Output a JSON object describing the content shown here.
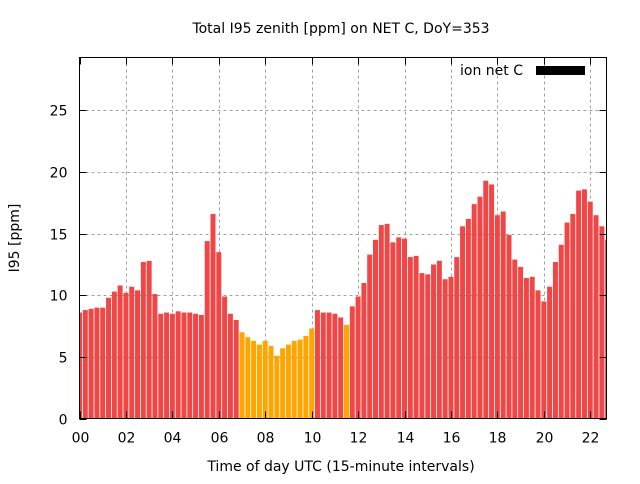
{
  "chart_data": {
    "type": "bar",
    "title": "Total I95 zenith [ppm] on NET C, DoY=353",
    "xlabel": "Time of day UTC (15-minute intervals)",
    "ylabel": "I95 [ppm]",
    "xlim": [
      0,
      22.7
    ],
    "ylim": [
      0,
      29.3
    ],
    "grid": true,
    "legend": {
      "placement": "top-right",
      "entries": [
        {
          "label": "ion net C",
          "color": "#000000"
        }
      ]
    },
    "x_ticks": [
      0,
      2,
      4,
      6,
      8,
      10,
      12,
      14,
      16,
      18,
      20,
      22
    ],
    "x_tick_labels": [
      "00",
      "02",
      "04",
      "06",
      "08",
      "10",
      "12",
      "14",
      "16",
      "18",
      "20",
      "22"
    ],
    "y_ticks": [
      0,
      5,
      10,
      15,
      20,
      25
    ],
    "y_tick_labels": [
      "0",
      "5",
      "10",
      "15",
      "20",
      "25"
    ],
    "interval_hours": 0.25,
    "colors": {
      "high": "#f04646",
      "low": "#ffa500"
    },
    "values": [
      8.6,
      8.8,
      8.9,
      9.0,
      9.0,
      9.8,
      10.3,
      10.8,
      10.2,
      10.7,
      10.4,
      12.7,
      12.8,
      10.1,
      8.5,
      8.6,
      8.5,
      8.7,
      8.6,
      8.6,
      8.5,
      8.4,
      14.4,
      16.6,
      13.5,
      9.9,
      8.5,
      8.0,
      7.0,
      6.6,
      6.3,
      6.0,
      6.3,
      5.9,
      5.1,
      5.7,
      6.0,
      6.3,
      6.4,
      6.7,
      7.3,
      8.8,
      8.6,
      8.6,
      8.5,
      8.2,
      7.6,
      9.1,
      9.9,
      11.0,
      13.3,
      14.5,
      15.7,
      15.8,
      14.3,
      14.7,
      14.6,
      13.1,
      13.2,
      11.8,
      11.7,
      12.5,
      12.8,
      11.3,
      11.5,
      13.1,
      15.6,
      16.2,
      17.4,
      18.0,
      19.3,
      19.0,
      16.5,
      16.8,
      14.9,
      12.9,
      12.3,
      11.4,
      11.5,
      10.4,
      9.5,
      10.7,
      12.7,
      14.1,
      15.9,
      16.6,
      18.5,
      18.6,
      17.6,
      16.5,
      15.6,
      14.5
    ],
    "bar_class": [
      "high",
      "high",
      "high",
      "high",
      "high",
      "high",
      "high",
      "high",
      "high",
      "high",
      "high",
      "high",
      "high",
      "high",
      "high",
      "high",
      "high",
      "high",
      "high",
      "high",
      "high",
      "high",
      "high",
      "high",
      "high",
      "high",
      "high",
      "high",
      "low",
      "low",
      "low",
      "low",
      "low",
      "low",
      "low",
      "low",
      "low",
      "low",
      "low",
      "low",
      "low",
      "high",
      "high",
      "high",
      "high",
      "high",
      "low",
      "high",
      "high",
      "high",
      "high",
      "high",
      "high",
      "high",
      "high",
      "high",
      "high",
      "high",
      "high",
      "high",
      "high",
      "high",
      "high",
      "high",
      "high",
      "high",
      "high",
      "high",
      "high",
      "high",
      "high",
      "high",
      "high",
      "high",
      "high",
      "high",
      "high",
      "high",
      "high",
      "high",
      "high",
      "high",
      "high",
      "high",
      "high",
      "high",
      "high",
      "high",
      "high",
      "high",
      "high",
      "high"
    ]
  }
}
